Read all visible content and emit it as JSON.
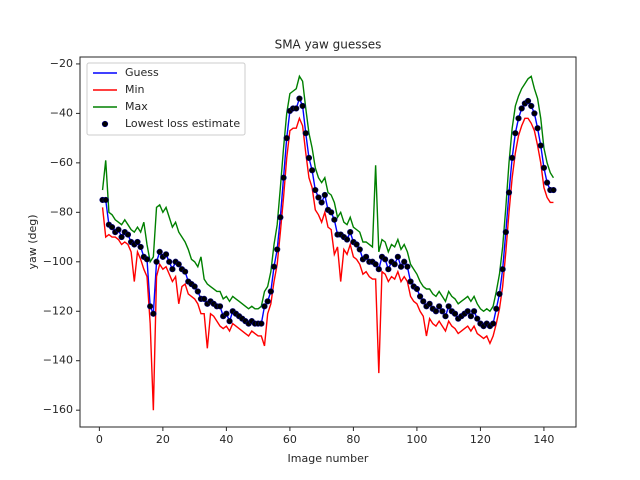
{
  "chart_data": {
    "type": "line",
    "title": "SMA yaw guesses",
    "x_label": "Image number",
    "y_label": "yaw (deg)",
    "legend": "upper left",
    "xlim": [
      -6.1,
      150.1
    ],
    "ylim": [
      -166.8,
      -17.2
    ],
    "xticks": [
      0,
      20,
      40,
      60,
      80,
      100,
      120,
      140
    ],
    "yticks": [
      {
        "value": -20,
        "label": "−20"
      },
      {
        "value": -40,
        "label": "−40"
      },
      {
        "value": -60,
        "label": "−60"
      },
      {
        "value": -80,
        "label": "−80"
      },
      {
        "value": -100,
        "label": "−100"
      },
      {
        "value": -120,
        "label": "−120"
      },
      {
        "value": -140,
        "label": "−140"
      },
      {
        "value": -160,
        "label": "−160"
      }
    ],
    "x": [
      1,
      2,
      3,
      4,
      5,
      6,
      7,
      8,
      9,
      10,
      11,
      12,
      13,
      14,
      15,
      16,
      17,
      18,
      19,
      20,
      21,
      22,
      23,
      24,
      25,
      26,
      27,
      28,
      29,
      30,
      31,
      32,
      33,
      34,
      35,
      36,
      37,
      38,
      39,
      40,
      41,
      42,
      43,
      44,
      45,
      46,
      47,
      48,
      49,
      50,
      51,
      52,
      53,
      54,
      55,
      56,
      57,
      58,
      59,
      60,
      61,
      62,
      63,
      64,
      65,
      66,
      67,
      68,
      69,
      70,
      71,
      72,
      73,
      74,
      75,
      76,
      77,
      78,
      79,
      80,
      81,
      82,
      83,
      84,
      85,
      86,
      87,
      88,
      89,
      90,
      91,
      92,
      93,
      94,
      95,
      96,
      97,
      98,
      99,
      100,
      101,
      102,
      103,
      104,
      105,
      106,
      107,
      108,
      109,
      110,
      111,
      112,
      113,
      114,
      115,
      116,
      117,
      118,
      119,
      120,
      121,
      122,
      123,
      124,
      125,
      126,
      127,
      128,
      129,
      130,
      131,
      132,
      133,
      134,
      135,
      136,
      137,
      138,
      139,
      140,
      141,
      142,
      143
    ],
    "series": [
      {
        "name": "Guess",
        "type": "line",
        "color": "#0000ff",
        "values": [
          -75,
          -75,
          -85,
          -86,
          -88,
          -87,
          -90,
          -88,
          -89,
          -92,
          -93,
          -92,
          -94,
          -98,
          -99,
          -118,
          -121,
          -100,
          -96,
          -98,
          -97,
          -100,
          -103,
          -100,
          -101,
          -103,
          -104,
          -108,
          -109,
          -110,
          -112,
          -115,
          -115,
          -117,
          -116,
          -117,
          -118,
          -118,
          -122,
          -121,
          -124,
          -120,
          -121,
          -122,
          -123,
          -124,
          -125,
          -124,
          -125,
          -125,
          -125,
          -118,
          -116,
          -112,
          -102,
          -95,
          -82,
          -66,
          -50,
          -39,
          -38,
          -38,
          -34,
          -37,
          -48,
          -58,
          -63,
          -71,
          -74,
          -76,
          -73,
          -79,
          -80,
          -83,
          -89,
          -89,
          -90,
          -91,
          -88,
          -92,
          -93,
          -95,
          -99,
          -98,
          -100,
          -100,
          -101,
          -103,
          -98,
          -99,
          -103,
          -100,
          -101,
          -98,
          -102,
          -100,
          -102,
          -108,
          -110,
          -111,
          -114,
          -116,
          -118,
          -117,
          -119,
          -120,
          -118,
          -120,
          -122,
          -118,
          -120,
          -121,
          -123,
          -122,
          -121,
          -120,
          -122,
          -120,
          -123,
          -125,
          -126,
          -125,
          -126,
          -125,
          -119,
          -113,
          -103,
          -88,
          -72,
          -58,
          -48,
          -42,
          -38,
          -36,
          -35,
          -37,
          -40,
          -46,
          -53,
          -62,
          -68,
          -71,
          -71
        ]
      },
      {
        "name": "Min",
        "type": "line",
        "color": "#ff0000",
        "values": [
          -78,
          -90,
          -89,
          -90,
          -90,
          -91,
          -93,
          -92,
          -93,
          -96,
          -108,
          -96,
          -99,
          -103,
          -106,
          -125,
          -160,
          -106,
          -101,
          -103,
          -102,
          -105,
          -108,
          -106,
          -117,
          -110,
          -109,
          -113,
          -114,
          -115,
          -117,
          -121,
          -121,
          -135,
          -121,
          -122,
          -124,
          -126,
          -127,
          -126,
          -128,
          -125,
          -126,
          -127,
          -128,
          -129,
          -130,
          -128,
          -129,
          -130,
          -130,
          -134,
          -121,
          -117,
          -108,
          -101,
          -88,
          -74,
          -58,
          -47,
          -46,
          -46,
          -42,
          -45,
          -56,
          -66,
          -70,
          -79,
          -81,
          -84,
          -80,
          -86,
          -87,
          -97,
          -94,
          -108,
          -95,
          -97,
          -93,
          -98,
          -99,
          -101,
          -105,
          -104,
          -106,
          -107,
          -107,
          -145,
          -104,
          -105,
          -108,
          -106,
          -107,
          -104,
          -108,
          -106,
          -108,
          -114,
          -116,
          -117,
          -120,
          -122,
          -130,
          -123,
          -125,
          -126,
          -124,
          -126,
          -128,
          -124,
          -126,
          -127,
          -129,
          -128,
          -127,
          -126,
          -128,
          -126,
          -129,
          -130,
          -131,
          -130,
          -133,
          -130,
          -125,
          -119,
          -110,
          -96,
          -80,
          -66,
          -56,
          -49,
          -45,
          -42,
          -42,
          -44,
          -47,
          -53,
          -60,
          -70,
          -74,
          -76,
          -76
        ]
      },
      {
        "name": "Max",
        "type": "line",
        "color": "#008000",
        "values": [
          -71,
          -59,
          -80,
          -81,
          -83,
          -84,
          -85,
          -83,
          -85,
          -87,
          -88,
          -86,
          -88,
          -84,
          -93,
          -100,
          -98,
          -78,
          -77,
          -80,
          -78,
          -82,
          -86,
          -84,
          -88,
          -90,
          -92,
          -95,
          -99,
          -100,
          -102,
          -98,
          -107,
          -109,
          -110,
          -111,
          -112,
          -112,
          -115,
          -114,
          -116,
          -114,
          -115,
          -116,
          -117,
          -118,
          -119,
          -118,
          -119,
          -119,
          -118,
          -112,
          -110,
          -104,
          -93,
          -85,
          -70,
          -54,
          -40,
          -32,
          -31,
          -30,
          -25,
          -27,
          -38,
          -48,
          -54,
          -62,
          -66,
          -68,
          -66,
          -72,
          -73,
          -76,
          -82,
          -80,
          -84,
          -85,
          -82,
          -86,
          -87,
          -88,
          -92,
          -92,
          -93,
          -94,
          -61,
          -96,
          -91,
          -92,
          -96,
          -93,
          -94,
          -91,
          -95,
          -93,
          -96,
          -101,
          -103,
          -105,
          -108,
          -110,
          -111,
          -111,
          -113,
          -114,
          -112,
          -114,
          -116,
          -112,
          -114,
          -115,
          -117,
          -116,
          -115,
          -114,
          -116,
          -114,
          -117,
          -119,
          -120,
          -119,
          -120,
          -118,
          -112,
          -105,
          -94,
          -78,
          -60,
          -46,
          -37,
          -33,
          -30,
          -28,
          -26,
          -25,
          -30,
          -34,
          -42,
          -54,
          -60,
          -64,
          -66
        ]
      },
      {
        "name": "Lowest loss estimate",
        "type": "scatter",
        "color": "#000000",
        "values": [
          -75,
          -75,
          -85,
          -86,
          -88,
          -87,
          -90,
          -88,
          -89,
          -92,
          -93,
          -92,
          -94,
          -98,
          -99,
          -118,
          -121,
          -100,
          -96,
          -98,
          -97,
          -100,
          -103,
          -100,
          -101,
          -103,
          -104,
          -108,
          -109,
          -110,
          -112,
          -115,
          -115,
          -117,
          -116,
          -117,
          -118,
          -118,
          -122,
          -121,
          -124,
          -120,
          -121,
          -122,
          -123,
          -124,
          -125,
          -124,
          -125,
          -125,
          -125,
          -118,
          -116,
          -112,
          -102,
          -95,
          -82,
          -66,
          -50,
          -39,
          -38,
          -38,
          -34,
          -37,
          -48,
          -58,
          -63,
          -71,
          -74,
          -76,
          -73,
          -79,
          -80,
          -83,
          -89,
          -89,
          -90,
          -91,
          -88,
          -92,
          -93,
          -95,
          -99,
          -98,
          -100,
          -100,
          -101,
          -103,
          -98,
          -99,
          -103,
          -100,
          -101,
          -98,
          -102,
          -100,
          -102,
          -108,
          -110,
          -111,
          -114,
          -116,
          -118,
          -117,
          -119,
          -120,
          -118,
          -120,
          -122,
          -118,
          -120,
          -121,
          -123,
          -122,
          -121,
          -120,
          -122,
          -120,
          -123,
          -125,
          -126,
          -125,
          -126,
          -125,
          -119,
          -113,
          -103,
          -88,
          -72,
          -58,
          -48,
          -42,
          -38,
          -36,
          -35,
          -37,
          -40,
          -46,
          -53,
          -62,
          -68,
          -71,
          -71
        ]
      }
    ]
  }
}
